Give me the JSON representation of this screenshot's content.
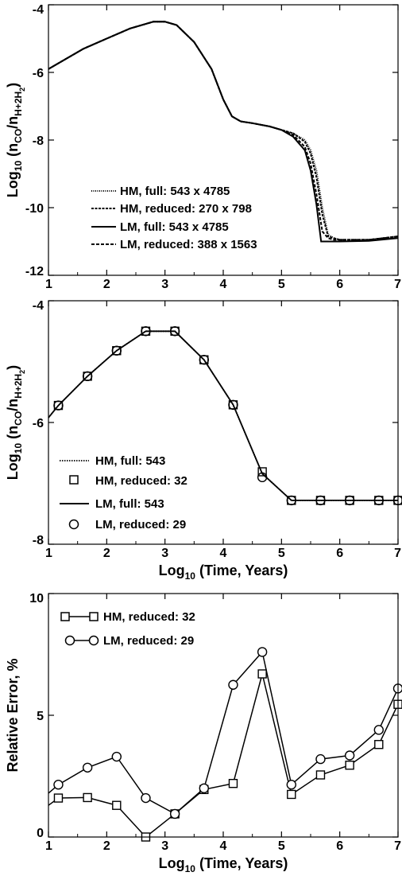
{
  "chart_data": [
    {
      "type": "line",
      "title": "",
      "xlabel": "",
      "ylabel": "Log10 (nCO/nH+2H2)",
      "ylabel_parts": {
        "log": "Log",
        "log_sub": "10",
        "open": " (n",
        "co_sub": "CO",
        "slash": "/n",
        "h_sub": "H+2H",
        "h2_sub": "2",
        "close": ")"
      },
      "xlim": [
        1,
        7
      ],
      "ylim": [
        -12,
        -4
      ],
      "xticks": [
        "1",
        "2",
        "3",
        "4",
        "5",
        "6",
        "7"
      ],
      "yticks": [
        "-12",
        "-10",
        "-8",
        "-6",
        "-4"
      ],
      "ytick_values": [
        -12,
        -10,
        -8,
        -6,
        -4
      ],
      "legend_position": "bottom-left",
      "series": [
        {
          "name": "HM, full: 543 x 4785",
          "dash": "1,1.5",
          "x": [
            1,
            1.3,
            1.6,
            2,
            2.4,
            2.8,
            3,
            3.2,
            3.5,
            3.8,
            4,
            4.15,
            4.3,
            4.5,
            4.8,
            5,
            5.2,
            5.4,
            5.5,
            5.6,
            5.7,
            5.8,
            5.9,
            6,
            6.5,
            7
          ],
          "y": [
            -5.9,
            -5.6,
            -5.3,
            -5.0,
            -4.7,
            -4.5,
            -4.5,
            -4.6,
            -5.1,
            -5.9,
            -6.8,
            -7.3,
            -7.45,
            -7.5,
            -7.6,
            -7.7,
            -7.8,
            -8.0,
            -8.3,
            -8.9,
            -10.0,
            -10.8,
            -10.9,
            -10.95,
            -10.95,
            -10.85
          ]
        },
        {
          "name": "HM, reduced: 270 x 798",
          "dash": "3,1.5",
          "x": [
            1,
            1.3,
            1.6,
            2,
            2.4,
            2.8,
            3,
            3.2,
            3.5,
            3.8,
            4,
            4.15,
            4.3,
            4.5,
            4.8,
            5,
            5.2,
            5.4,
            5.5,
            5.6,
            5.7,
            5.8,
            5.9,
            6,
            6.5,
            7
          ],
          "y": [
            -5.9,
            -5.6,
            -5.3,
            -5.0,
            -4.7,
            -4.5,
            -4.5,
            -4.6,
            -5.1,
            -5.9,
            -6.8,
            -7.3,
            -7.45,
            -7.5,
            -7.6,
            -7.7,
            -7.8,
            -8.05,
            -8.4,
            -9.1,
            -10.2,
            -10.85,
            -10.9,
            -10.95,
            -10.95,
            -10.85
          ]
        },
        {
          "name": "LM, full: 543 x 4785",
          "dash": "",
          "x": [
            1,
            1.3,
            1.6,
            2,
            2.4,
            2.8,
            3,
            3.2,
            3.5,
            3.8,
            4,
            4.15,
            4.3,
            4.5,
            4.8,
            5,
            5.2,
            5.4,
            5.5,
            5.6,
            5.68,
            5.75,
            5.9,
            6,
            6.5,
            7
          ],
          "y": [
            -5.9,
            -5.6,
            -5.3,
            -5.0,
            -4.7,
            -4.5,
            -4.5,
            -4.6,
            -5.1,
            -5.9,
            -6.8,
            -7.3,
            -7.45,
            -7.5,
            -7.6,
            -7.7,
            -7.9,
            -8.3,
            -8.9,
            -9.9,
            -11.0,
            -11.0,
            -11.0,
            -11.0,
            -10.98,
            -10.9
          ]
        },
        {
          "name": "LM, reduced: 388 x 1563",
          "dash": "4,2",
          "x": [
            1,
            1.3,
            1.6,
            2,
            2.4,
            2.8,
            3,
            3.2,
            3.5,
            3.8,
            4,
            4.15,
            4.3,
            4.5,
            4.8,
            5,
            5.2,
            5.4,
            5.5,
            5.6,
            5.7,
            5.8,
            5.9,
            6,
            6.5,
            7
          ],
          "y": [
            -5.9,
            -5.6,
            -5.3,
            -5.0,
            -4.7,
            -4.5,
            -4.5,
            -4.6,
            -5.1,
            -5.9,
            -6.8,
            -7.3,
            -7.45,
            -7.5,
            -7.6,
            -7.7,
            -7.85,
            -8.2,
            -8.7,
            -9.6,
            -10.7,
            -10.9,
            -10.95,
            -10.95,
            -10.95,
            -10.85
          ]
        }
      ]
    },
    {
      "type": "line",
      "title": "",
      "xlabel": "Log10 (Time, Years)",
      "xlabel_parts": {
        "log": "Log",
        "log_sub": "10",
        "rest": " (Time, Years)"
      },
      "ylabel": "Log10 (nCO/nH+2H2)",
      "ylabel_parts": {
        "log": "Log",
        "log_sub": "10",
        "open": " (n",
        "co_sub": "CO",
        "slash": "/n",
        "h_sub": "H+2H",
        "h2_sub": "2",
        "close": ")"
      },
      "xlim": [
        1,
        7
      ],
      "ylim": [
        -8,
        -4
      ],
      "xticks": [
        "1",
        "2",
        "3",
        "4",
        "5",
        "6",
        "7"
      ],
      "yticks": [
        "-8",
        "-6",
        "-4"
      ],
      "ytick_values": [
        -8,
        -6,
        -4
      ],
      "legend_position": "bottom-left",
      "series": [
        {
          "name": "HM, full:  543",
          "style": "dotted-line",
          "x": [
            1,
            1.17,
            1.67,
            2.17,
            2.67,
            3.17,
            3.67,
            4.17,
            4.67,
            5.17,
            5.67,
            6.17,
            6.67,
            7
          ],
          "y": [
            -5.92,
            -5.72,
            -5.24,
            -4.82,
            -4.5,
            -4.5,
            -4.97,
            -5.71,
            -6.84,
            -7.28,
            -7.28,
            -7.28,
            -7.28,
            -7.28
          ]
        },
        {
          "name": "HM, reduced:  32",
          "style": "square-markers",
          "x": [
            1.17,
            1.67,
            2.17,
            2.67,
            3.17,
            3.67,
            4.17,
            4.67,
            5.17,
            5.67,
            6.17,
            6.67,
            7
          ],
          "y": [
            -5.72,
            -5.24,
            -4.82,
            -4.5,
            -4.5,
            -4.97,
            -5.71,
            -6.81,
            -7.28,
            -7.28,
            -7.28,
            -7.28,
            -7.28
          ]
        },
        {
          "name": "LM, full:  543",
          "style": "solid-line",
          "x": [
            1,
            1.17,
            1.67,
            2.17,
            2.67,
            3.17,
            3.67,
            4.17,
            4.67,
            5.17,
            5.67,
            6.17,
            6.67,
            7
          ],
          "y": [
            -5.92,
            -5.72,
            -5.24,
            -4.82,
            -4.5,
            -4.5,
            -4.97,
            -5.71,
            -6.84,
            -7.28,
            -7.28,
            -7.28,
            -7.28,
            -7.28
          ]
        },
        {
          "name": "LM, reduced:  29",
          "style": "circle-markers",
          "x": [
            1.17,
            1.67,
            2.17,
            2.67,
            3.17,
            3.67,
            4.17,
            4.67,
            5.17,
            5.67,
            6.17,
            6.67,
            7
          ],
          "y": [
            -5.72,
            -5.24,
            -4.82,
            -4.5,
            -4.5,
            -4.97,
            -5.71,
            -6.9,
            -7.28,
            -7.28,
            -7.28,
            -7.28,
            -7.28
          ]
        }
      ]
    },
    {
      "type": "line",
      "title": "",
      "xlabel": "Log10 (Time, Years)",
      "xlabel_parts": {
        "log": "Log",
        "log_sub": "10",
        "rest": " (Time, Years)"
      },
      "ylabel": "Relative Error, %",
      "xlim": [
        1,
        7
      ],
      "ylim": [
        0,
        10
      ],
      "xticks": [
        "1",
        "2",
        "3",
        "4",
        "5",
        "6",
        "7"
      ],
      "yticks": [
        "0",
        "5",
        "10"
      ],
      "ytick_values": [
        0,
        5,
        10
      ],
      "legend_position": "top-left",
      "series": [
        {
          "name": "HM, reduced:  32",
          "marker": "square",
          "x": [
            1,
            1.17,
            1.67,
            2.17,
            2.67,
            3.17,
            3.67,
            4.17,
            4.67,
            5.17,
            5.67,
            6.17,
            6.67,
            7
          ],
          "y": [
            1.3,
            1.6,
            1.62,
            1.3,
            0,
            0.95,
            1.95,
            2.2,
            6.7,
            1.75,
            2.55,
            2.95,
            3.8,
            5.45
          ]
        },
        {
          "name": "LM, reduced:  29",
          "marker": "circle",
          "x": [
            1,
            1.17,
            1.67,
            2.17,
            2.67,
            3.17,
            3.67,
            4.17,
            4.67,
            5.17,
            5.67,
            6.17,
            6.67,
            7
          ],
          "y": [
            1.8,
            2.15,
            2.85,
            3.3,
            1.6,
            0.95,
            2.0,
            6.25,
            7.6,
            2.15,
            3.2,
            3.35,
            4.4,
            6.1
          ]
        }
      ]
    }
  ]
}
